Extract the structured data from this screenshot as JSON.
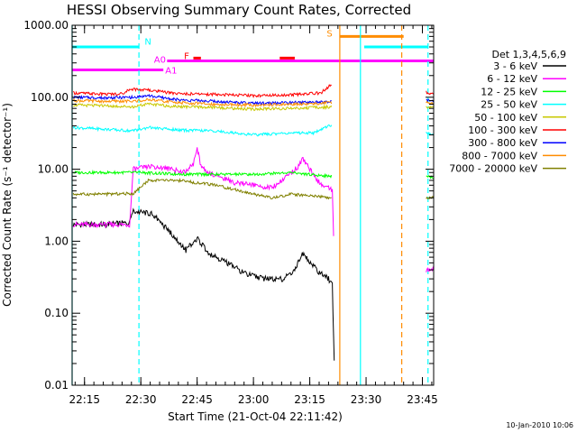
{
  "chart_data": {
    "type": "line",
    "title": "HESSI Observing Summary Count Rates, Corrected",
    "ylabel": "Corrected Count Rate (s⁻¹ detector⁻¹)",
    "xlabel": "Start Time (21-Oct-04 22:11:42)",
    "y_scale": "log",
    "ylim": [
      0.01,
      1000
    ],
    "y_ticks": [
      {
        "value": 0.01,
        "label": "0.01"
      },
      {
        "value": 0.1,
        "label": "0.10"
      },
      {
        "value": 1,
        "label": "1.00"
      },
      {
        "value": 10,
        "label": "10.00"
      },
      {
        "value": 100,
        "label": "100.00"
      },
      {
        "value": 1000,
        "label": "1000.00"
      }
    ],
    "xlim": [
      "22:11:42",
      "23:48:00"
    ],
    "x_ticks": [
      "22:15",
      "22:30",
      "22:45",
      "23:00",
      "23:15",
      "23:30",
      "23:45"
    ],
    "legend": {
      "title": "Det 1,3,4,5,6,9",
      "placement": "right"
    },
    "series": [
      {
        "name": "3 - 6 keV",
        "color": "#000000",
        "x": [
          "22:12",
          "22:20",
          "22:27",
          "22:28",
          "22:33",
          "22:38",
          "22:42",
          "22:45",
          "22:48",
          "22:53",
          "22:58",
          "23:03",
          "23:08",
          "23:11",
          "23:13",
          "23:15",
          "23:18",
          "23:20",
          "23:21",
          "23:21:30"
        ],
        "y": [
          1.7,
          1.7,
          1.8,
          2.6,
          2.4,
          1.3,
          0.75,
          1.1,
          0.7,
          0.5,
          0.35,
          0.3,
          0.3,
          0.4,
          0.7,
          0.5,
          0.35,
          0.3,
          0.25,
          0.022
        ]
      },
      {
        "name": "6 - 12 keV",
        "color": "#ff00ff",
        "x": [
          "22:12",
          "22:20",
          "22:27",
          "22:28",
          "22:33",
          "22:38",
          "22:42",
          "22:44",
          "22:45",
          "22:46",
          "22:48",
          "22:55",
          "23:00",
          "23:05",
          "23:09",
          "23:12",
          "23:13",
          "23:15",
          "23:18",
          "23:20",
          "23:21",
          "23:21:30",
          "23:46",
          "23:48"
        ],
        "y": [
          1.7,
          1.7,
          1.7,
          10,
          11,
          10,
          9,
          12,
          20,
          11,
          9,
          6.5,
          6,
          5.5,
          8,
          11,
          14,
          10,
          6,
          5.5,
          5,
          0.55,
          0.4,
          0.4
        ]
      },
      {
        "name": "12 - 25 keV",
        "color": "#00ff00",
        "x": [
          "22:12",
          "22:20",
          "22:30",
          "22:40",
          "22:50",
          "23:00",
          "23:10",
          "23:15",
          "23:20",
          "23:21",
          "23:46",
          "23:48"
        ],
        "y": [
          9,
          9,
          9,
          8.5,
          8.5,
          8.5,
          9,
          8.5,
          8,
          8,
          8,
          7.5
        ]
      },
      {
        "name": "25 - 50 keV",
        "color": "#00ffff",
        "x": [
          "22:12",
          "22:20",
          "22:28",
          "22:32",
          "22:40",
          "22:50",
          "23:00",
          "23:10",
          "23:16",
          "23:20",
          "23:21",
          "23:46",
          "23:48"
        ],
        "y": [
          38,
          36,
          34,
          38,
          35,
          34,
          30,
          32,
          32,
          40,
          40,
          32,
          30
        ]
      },
      {
        "name": "50 - 100 keV",
        "color": "#c8c800",
        "x": [
          "22:12",
          "22:20",
          "22:28",
          "22:32",
          "22:40",
          "22:50",
          "23:00",
          "23:10",
          "23:18",
          "23:21",
          "23:46",
          "23:48"
        ],
        "y": [
          78,
          76,
          74,
          80,
          74,
          72,
          68,
          70,
          72,
          74,
          74,
          72
        ]
      },
      {
        "name": "100 - 300 keV",
        "color": "#ff0000",
        "x": [
          "22:12",
          "22:20",
          "22:25",
          "22:27",
          "22:32",
          "22:40",
          "22:50",
          "23:00",
          "23:10",
          "23:18",
          "23:21",
          "23:46",
          "23:48"
        ],
        "y": [
          115,
          110,
          112,
          130,
          125,
          112,
          110,
          105,
          108,
          115,
          155,
          118,
          110
        ]
      },
      {
        "name": "300 - 800 keV",
        "color": "#0000ff",
        "x": [
          "22:12",
          "22:20",
          "22:28",
          "22:32",
          "22:40",
          "22:50",
          "23:00",
          "23:10",
          "23:18",
          "23:21",
          "23:46",
          "23:48"
        ],
        "y": [
          100,
          98,
          100,
          105,
          92,
          88,
          82,
          84,
          86,
          88,
          92,
          90
        ]
      },
      {
        "name": "800 - 7000 keV",
        "color": "#ff8c00",
        "x": [
          "22:12",
          "22:20",
          "22:28",
          "22:32",
          "22:40",
          "22:50",
          "23:00",
          "23:10",
          "23:18",
          "23:21",
          "23:46",
          "23:48"
        ],
        "y": [
          90,
          88,
          88,
          92,
          84,
          80,
          78,
          80,
          82,
          84,
          84,
          82
        ]
      },
      {
        "name": "7000 - 20000 keV",
        "color": "#808000",
        "x": [
          "22:12",
          "22:20",
          "22:28",
          "22:32",
          "22:40",
          "22:50",
          "23:00",
          "23:05",
          "23:10",
          "23:15",
          "23:20",
          "23:21",
          "23:46",
          "23:48"
        ],
        "y": [
          4.5,
          4.5,
          4.6,
          7,
          7,
          6,
          4.5,
          4,
          4.5,
          4.3,
          4,
          4,
          4,
          4
        ]
      }
    ],
    "annotations": {
      "markers": [
        {
          "label": "N",
          "color": "#00ffff"
        },
        {
          "label": "F",
          "color": "#ff0000"
        },
        {
          "label": "A0",
          "color": "#ff00ff"
        },
        {
          "label": "A1",
          "color": "#ff00ff"
        },
        {
          "label": "S",
          "color": "#ff8c00"
        }
      ],
      "bars": [
        {
          "color": "#00ffff",
          "value": 500,
          "start": "22:11:42",
          "end": "22:29:30"
        },
        {
          "color": "#00ffff",
          "value": 500,
          "start": "23:29:30",
          "end": "23:46:30"
        },
        {
          "color": "#ff00ff",
          "value": 240,
          "start": "22:11:42",
          "end": "22:36:00"
        },
        {
          "color": "#ff00ff",
          "value": 320,
          "start": "22:37:00",
          "end": "23:48:00"
        },
        {
          "color": "#ff0000",
          "value": 350,
          "start": "22:44:00",
          "end": "22:46:00"
        },
        {
          "color": "#ff0000",
          "value": 350,
          "start": "23:07:00",
          "end": "23:11:00"
        },
        {
          "color": "#ff8c00",
          "value": 700,
          "start": "23:23:00",
          "end": "23:40:00"
        }
      ],
      "vlines": [
        {
          "time": "22:11:42",
          "color": "#00ffff",
          "style": "solid"
        },
        {
          "time": "22:29:30",
          "color": "#00ffff",
          "style": "dashed"
        },
        {
          "time": "23:23:00",
          "color": "#ff8c00",
          "style": "solid"
        },
        {
          "time": "23:28:30",
          "color": "#00ffff",
          "style": "solid"
        },
        {
          "time": "23:39:30",
          "color": "#ff8c00",
          "style": "dashed"
        },
        {
          "time": "23:46:30",
          "color": "#00ffff",
          "style": "dashed"
        }
      ]
    },
    "grid": false
  },
  "footer": {
    "timestamp": "10-Jan-2010 10:06"
  }
}
